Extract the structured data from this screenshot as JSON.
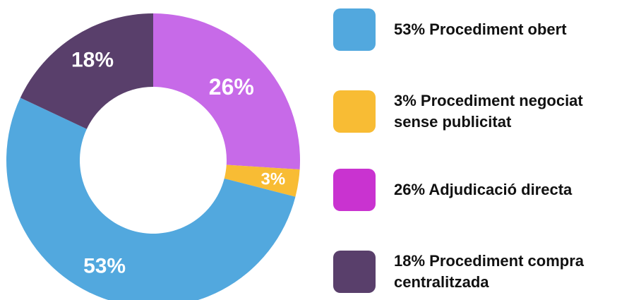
{
  "chart_data": {
    "type": "pie",
    "title": "",
    "categories": [
      "Procediment obert",
      "Procediment negociat sense publicitat",
      "Adjudicació directa",
      "Procediment compra centralitzada"
    ],
    "values": [
      53,
      3,
      26,
      18
    ],
    "slice_labels": [
      "53%",
      "3%",
      "26%",
      "18%"
    ],
    "colors": [
      "#52a8de",
      "#f8bc34",
      "#c76ae8",
      "#593f6b"
    ],
    "donut": true,
    "legend_placement": "right",
    "legend": [
      {
        "text": "53% Procediment obert",
        "color": "#52a8de"
      },
      {
        "text": "3% Procediment negociat\nsense publicitat",
        "color": "#f8bc34"
      },
      {
        "text": "26% Adjudicació directa",
        "color": "#c933d0"
      },
      {
        "text": "18% Procediment compra\ncentralitzada",
        "color": "#593f6b"
      }
    ]
  }
}
